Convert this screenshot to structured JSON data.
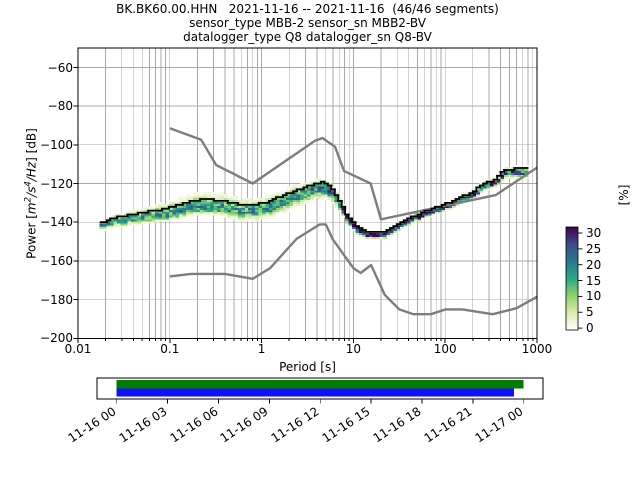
{
  "title": {
    "line1": "BK.BK60.00.HHN   2021-11-16 -- 2021-11-16  (46/46 segments)",
    "line2": "sensor_type MBB-2 sensor_sn MBB2-BV",
    "line3": "datalogger_type Q8 datalogger_sn Q8-BV"
  },
  "axes": {
    "xlabel": "Period [s]",
    "ylabel": {
      "prefix": "Power [",
      "m_base": "m",
      "m_exp": "2",
      "s_base": "/s",
      "s_exp": "4",
      "hz_base": "/Hz",
      "suffix": "] [dB]"
    },
    "xtick_labels": [
      "0.01",
      "0.1",
      "1",
      "10",
      "100",
      "1000"
    ],
    "ytick_labels": [
      "−60",
      "−80",
      "−100",
      "−120",
      "−140",
      "−160",
      "−180",
      "−200"
    ]
  },
  "colorbar": {
    "label": "[%]",
    "tick_labels": [
      "30",
      "25",
      "20",
      "15",
      "10",
      "5",
      "0"
    ]
  },
  "timeline": {
    "tick_labels": [
      "11-16 00",
      "11-16 03",
      "11-16 06",
      "11-16 09",
      "11-16 12",
      "11-16 15",
      "11-16 18",
      "11-16 21",
      "11-17 00"
    ],
    "bars": [
      {
        "name": "coverage",
        "color": "#007c00",
        "start_frac": 0.0,
        "end_frac": 0.999,
        "row": "top"
      },
      {
        "name": "segments",
        "color": "#1010ff",
        "start_frac": 0.0,
        "end_frac": 0.976,
        "row": "bottom"
      }
    ]
  },
  "chart_data": {
    "type": "heatmap",
    "title": "BK.BK60.00.HHN   2021-11-16 -- 2021-11-16  (46/46 segments)",
    "subtitle": "sensor_type MBB-2 sensor_sn MBB2-BV / datalogger_type Q8 datalogger_sn Q8-BV",
    "xlabel": "Period [s]",
    "ylabel": "Power [m^2/s^4/Hz] [dB]",
    "xscale": "log",
    "xlim": [
      0.01,
      1000
    ],
    "ylim": [
      -200,
      -50
    ],
    "xticks": [
      0.01,
      0.1,
      1,
      10,
      100,
      1000
    ],
    "yticks": [
      -60,
      -80,
      -100,
      -120,
      -140,
      -160,
      -180,
      -200
    ],
    "grid": "major+minor-x, major-y, color gray",
    "colorbar": {
      "label": "[%]",
      "ticks": [
        0,
        5,
        10,
        15,
        20,
        25,
        30
      ],
      "vmax": 32,
      "colormap": "viridis_white_r (white -> green -> teal -> dark purple)",
      "stops": [
        "#ffffff",
        "#dcecb2",
        "#8fd168",
        "#27a885",
        "#2a788e",
        "#3e4a89",
        "#440155"
      ]
    },
    "noise_models": {
      "color": "#7d7d7d",
      "nlnm": [
        [
          0.1,
          -168.0
        ],
        [
          0.17,
          -166.7
        ],
        [
          0.4,
          -166.7
        ],
        [
          0.8,
          -169.2
        ],
        [
          1.24,
          -163.7
        ],
        [
          2.4,
          -148.6
        ],
        [
          4.3,
          -141.1
        ],
        [
          5,
          -141.1
        ],
        [
          6,
          -149.0
        ],
        [
          10,
          -163.7
        ],
        [
          12,
          -166.2
        ],
        [
          15.6,
          -162.1
        ],
        [
          21.9,
          -177.5
        ],
        [
          31.6,
          -185.0
        ],
        [
          45,
          -187.5
        ],
        [
          70,
          -187.5
        ],
        [
          101,
          -185.0
        ],
        [
          154,
          -185.0
        ],
        [
          328,
          -187.5
        ],
        [
          600,
          -184.4
        ],
        [
          1000,
          -178.5
        ]
      ],
      "nhnm": [
        [
          0.1,
          -91.5
        ],
        [
          0.22,
          -97.4
        ],
        [
          0.32,
          -110.5
        ],
        [
          0.8,
          -120.0
        ],
        [
          3.8,
          -98.0
        ],
        [
          4.6,
          -96.5
        ],
        [
          6.3,
          -101.0
        ],
        [
          7.9,
          -113.5
        ],
        [
          15.4,
          -120.0
        ],
        [
          20,
          -138.5
        ],
        [
          354.8,
          -126.0
        ],
        [
          1000,
          -111.8
        ]
      ]
    },
    "ppsd": {
      "period_start": 0.018,
      "period_end": 780,
      "octave_step": 0.125,
      "db_bin": 1,
      "mean_lift_of_up": 0.42,
      "envelope_columns": "[period_s, mode_dB, spread_up_dB, spread_down_dB, peak_probability_pct]",
      "envelope": [
        [
          0.018,
          -141.5,
          2.5,
          2.5,
          18
        ],
        [
          0.025,
          -139.5,
          4,
          3,
          17
        ],
        [
          0.04,
          -138,
          5,
          3,
          17
        ],
        [
          0.07,
          -136.5,
          6,
          3.2,
          17
        ],
        [
          0.1,
          -135.5,
          7,
          3.5,
          17
        ],
        [
          0.15,
          -133.5,
          8,
          3.5,
          17
        ],
        [
          0.22,
          -131.5,
          8,
          4,
          17
        ],
        [
          0.35,
          -131.8,
          7.5,
          4.5,
          17
        ],
        [
          0.55,
          -133.5,
          7,
          5,
          17
        ],
        [
          0.8,
          -134.5,
          7,
          5,
          17
        ],
        [
          1.2,
          -132,
          6.5,
          5.5,
          17
        ],
        [
          1.8,
          -128.5,
          6.5,
          6,
          17
        ],
        [
          2.6,
          -125.5,
          6,
          6,
          18
        ],
        [
          3.5,
          -123,
          5.5,
          6,
          19
        ],
        [
          4.6,
          -121.5,
          5,
          6,
          21
        ],
        [
          5.6,
          -123,
          4,
          5.5,
          23
        ],
        [
          7,
          -129.5,
          3,
          4.5,
          27
        ],
        [
          8.5,
          -137,
          2.5,
          3.5,
          31
        ],
        [
          10.5,
          -142,
          2,
          3,
          35
        ],
        [
          13.5,
          -145.5,
          2,
          2.2,
          36
        ],
        [
          18,
          -146.3,
          2,
          2,
          36
        ],
        [
          24,
          -145.3,
          2,
          2,
          36
        ],
        [
          31,
          -141.6,
          2,
          2,
          36
        ],
        [
          42,
          -138.5,
          2,
          2,
          35
        ],
        [
          55,
          -136.3,
          2,
          2,
          34
        ],
        [
          75,
          -133.8,
          2,
          2,
          34
        ],
        [
          100,
          -131.8,
          2.2,
          2,
          32
        ],
        [
          140,
          -128.8,
          2.4,
          2.2,
          30
        ],
        [
          200,
          -125.3,
          2.6,
          2.4,
          28
        ],
        [
          280,
          -120.9,
          2.8,
          2.5,
          26
        ],
        [
          360,
          -118.9,
          3,
          2.5,
          25
        ],
        [
          440,
          -114.4,
          3,
          2.8,
          24
        ],
        [
          520,
          -113.9,
          3.2,
          3,
          23
        ],
        [
          780,
          -113.6,
          3.4,
          3,
          20
        ]
      ]
    },
    "timeline_axis": {
      "tick_labels": [
        "11-16 00",
        "11-16 03",
        "11-16 06",
        "11-16 09",
        "11-16 12",
        "11-16 15",
        "11-16 18",
        "11-16 21",
        "11-17 00"
      ],
      "coverage_bar": {
        "color": "#007c00",
        "start": "11-16 00:00",
        "end_frac_of_day": 0.999
      },
      "segment_bar": {
        "color": "#1010ff",
        "start": "11-16 00:00",
        "end_frac_of_day": 0.976
      }
    }
  }
}
